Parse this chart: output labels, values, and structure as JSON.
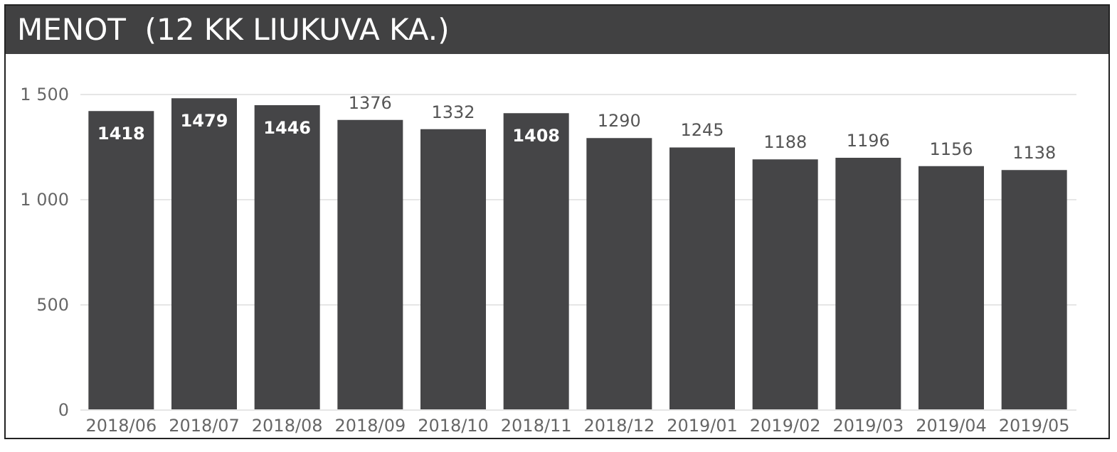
{
  "chart_data": {
    "type": "bar",
    "title": "MENOT  (12 KK LIUKUVA KA.)",
    "categories": [
      "2018/06",
      "2018/07",
      "2018/08",
      "2018/09",
      "2018/10",
      "2018/11",
      "2018/12",
      "2019/01",
      "2019/02",
      "2019/03",
      "2019/04",
      "2019/05"
    ],
    "values": [
      1418,
      1479,
      1446,
      1376,
      1332,
      1408,
      1290,
      1245,
      1188,
      1196,
      1156,
      1138
    ],
    "color": "#454547",
    "ylim": [
      0,
      1500
    ],
    "yticks": [
      0,
      500,
      {
        "value": 1000,
        "label": "1 000"
      },
      {
        "value": 1500,
        "label": "1 500"
      }
    ],
    "grid": "y",
    "data_labels": true
  }
}
